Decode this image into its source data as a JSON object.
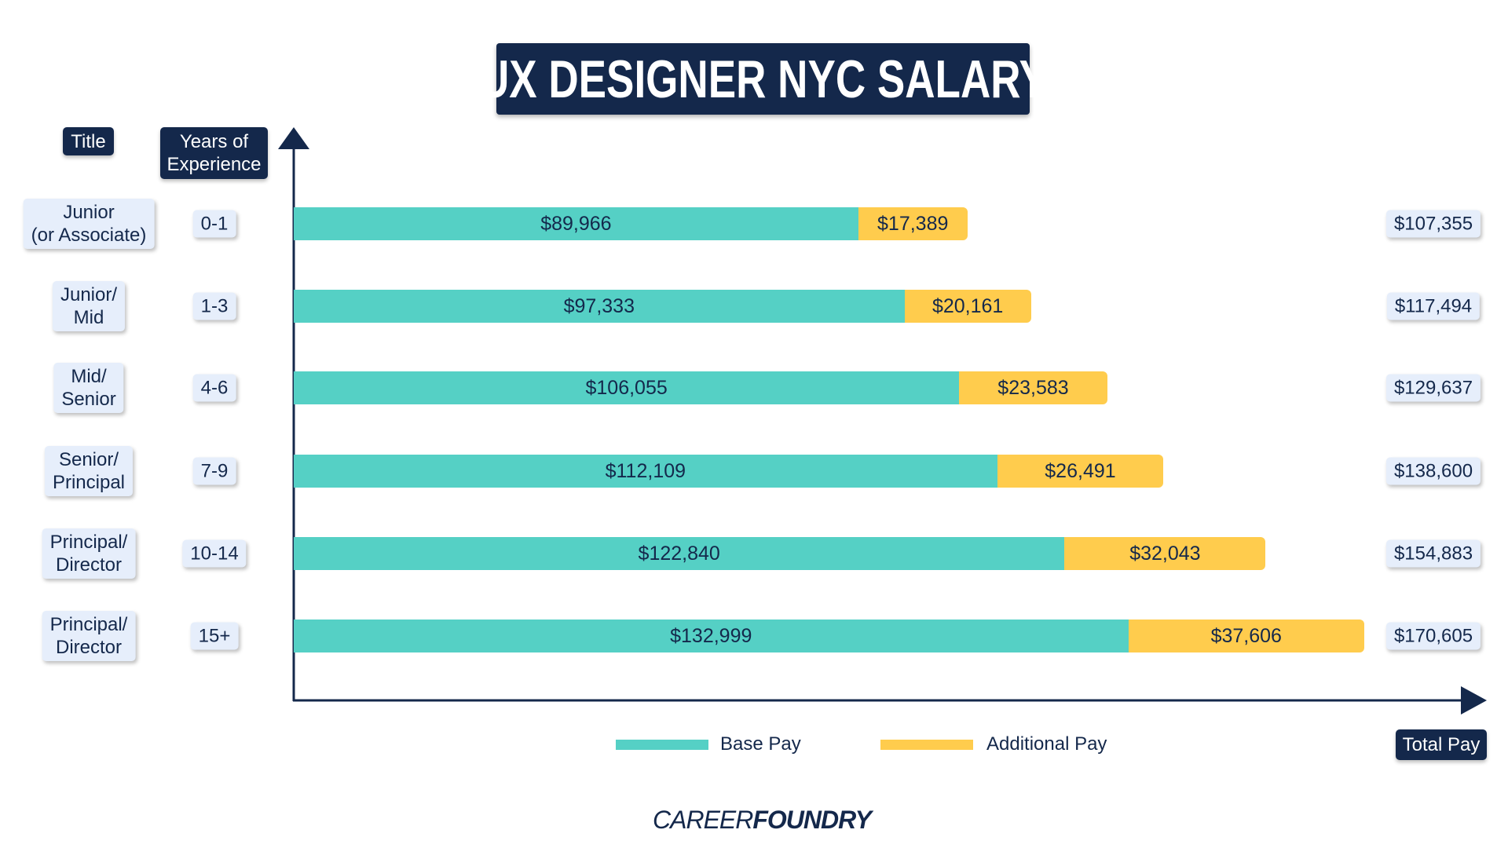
{
  "chart_data": {
    "type": "bar",
    "stacked": true,
    "orientation": "horizontal",
    "title": "UX DESIGNER NYC SALARY",
    "column_headers": {
      "title": "Title",
      "years": "Years of Experience",
      "total": "Total Pay"
    },
    "categories": [
      {
        "title": "Junior\n(or Associate)",
        "years": "0-1"
      },
      {
        "title": "Junior/\nMid",
        "years": "1-3"
      },
      {
        "title": "Mid/\nSenior",
        "years": "4-6"
      },
      {
        "title": "Senior/\nPrincipal",
        "years": "7-9"
      },
      {
        "title": "Principal/\nDirector",
        "years": "10-14"
      },
      {
        "title": "Principal/\nDirector",
        "years": "15+"
      }
    ],
    "series": [
      {
        "name": "Base Pay",
        "color": "#55d0c5",
        "values": [
          89966,
          97333,
          106055,
          112109,
          122840,
          132999
        ],
        "labels": [
          "$89,966",
          "$97,333",
          "$106,055",
          "$112,109",
          "$122,840",
          "$132,999"
        ]
      },
      {
        "name": "Additional Pay",
        "color": "#ffcc4d",
        "values": [
          17389,
          20161,
          23583,
          26491,
          32043,
          37606
        ],
        "labels": [
          "$17,389",
          "$20,161",
          "$23,583",
          "$26,491",
          "$32,043",
          "$37,606"
        ]
      }
    ],
    "totals": [
      "$107,355",
      "$117,494",
      "$129,637",
      "$138,600",
      "$154,883",
      "$170,605"
    ],
    "xlim": [
      0,
      170605
    ],
    "grid": false,
    "legend": "bottom"
  },
  "logo": {
    "text1": "CAREER",
    "text2": "FOUNDRY"
  },
  "colors": {
    "navy": "#14284b"
  }
}
